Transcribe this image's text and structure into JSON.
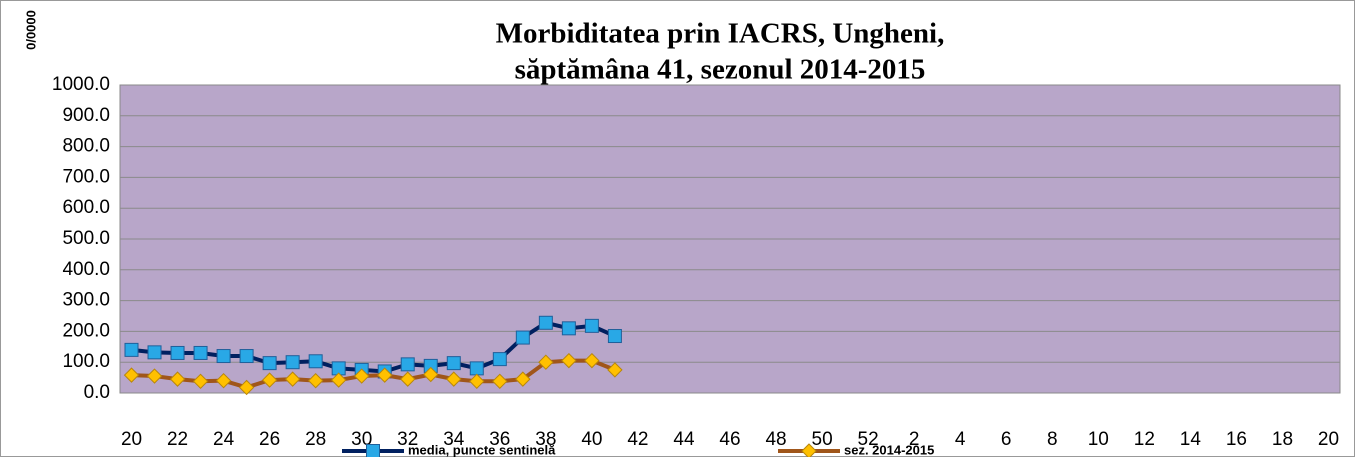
{
  "chart_data": {
    "type": "line",
    "title": "Morbiditatea prin IACRS, Ungheni,",
    "subtitle": "săptămâna 41, sezonul  2014-2015",
    "y_label": "0/0000",
    "categories": [
      20,
      null,
      22,
      null,
      24,
      null,
      26,
      null,
      28,
      null,
      30,
      null,
      32,
      null,
      34,
      null,
      36,
      null,
      38,
      null,
      40,
      null,
      42,
      null,
      44,
      null,
      46,
      null,
      48,
      null,
      50,
      null,
      52,
      null,
      2,
      null,
      4,
      null,
      6,
      null,
      8,
      null,
      10,
      null,
      12,
      null,
      14,
      null,
      16,
      null,
      18,
      null,
      20
    ],
    "series": [
      {
        "name": "media, puncte sentinelă",
        "color": "#002060",
        "marker_color": "#29a8e6",
        "marker": "square",
        "values": [
          140,
          132,
          130,
          130,
          120,
          120,
          97,
          100,
          103,
          80,
          75,
          70,
          93,
          88,
          97,
          80,
          110,
          180,
          228,
          210,
          218,
          185,
          null,
          null,
          null,
          null,
          null,
          null,
          null,
          null,
          null,
          null,
          null,
          null,
          null,
          null,
          null,
          null,
          null,
          null,
          null,
          null,
          null,
          null,
          null,
          null,
          null,
          null,
          null,
          null,
          null,
          null,
          null
        ]
      },
      {
        "name": "sez. 2014-2015",
        "color": "#a0561a",
        "marker_color": "#ffc000",
        "marker": "diamond",
        "values": [
          58,
          55,
          45,
          38,
          40,
          18,
          42,
          45,
          40,
          42,
          55,
          58,
          45,
          60,
          45,
          38,
          38,
          45,
          100,
          105,
          105,
          75,
          null,
          null,
          null,
          null,
          null,
          null,
          null,
          null,
          null,
          null,
          null,
          null,
          null,
          null,
          null,
          null,
          null,
          null,
          null,
          null,
          null,
          null,
          null,
          null,
          null,
          null,
          null,
          null,
          null,
          null,
          null
        ]
      }
    ],
    "ylim": [
      0,
      1000
    ],
    "yticks": [
      {
        "value": 0,
        "label": "0.0"
      },
      {
        "value": 100,
        "label": "100.0"
      },
      {
        "value": 200,
        "label": "200.0"
      },
      {
        "value": 300,
        "label": "300.0"
      },
      {
        "value": 400,
        "label": "400.0"
      },
      {
        "value": 500,
        "label": "500.0"
      },
      {
        "value": 600,
        "label": "600.0"
      },
      {
        "value": 700,
        "label": "700.0"
      },
      {
        "value": 800,
        "label": "800.0"
      },
      {
        "value": 900,
        "label": "900.0"
      },
      {
        "value": 1000,
        "label": "1000.0"
      }
    ],
    "grid": true,
    "plot_background": "#b8a6c9",
    "legend": "bottom"
  }
}
